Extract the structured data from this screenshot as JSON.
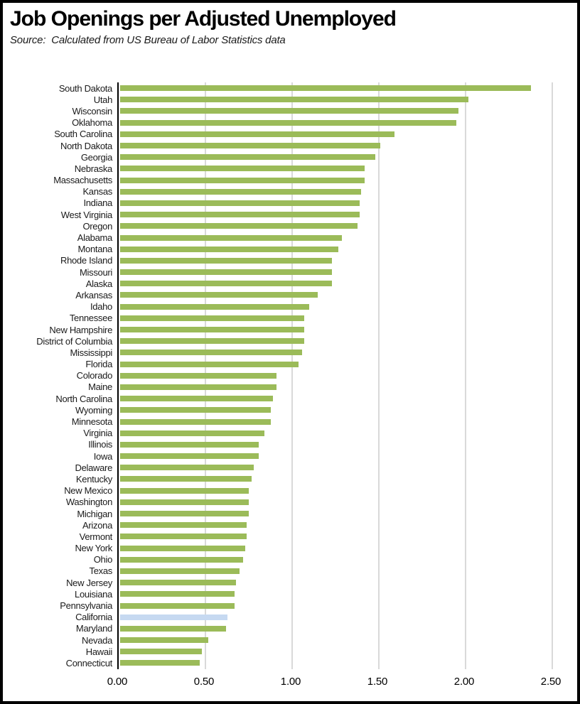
{
  "header": {
    "title": "Job Openings per Adjusted Unemployed",
    "subtitle": "Source:  Calculated from US Bureau of Labor Statistics data"
  },
  "chart_data": {
    "type": "bar",
    "orientation": "horizontal",
    "title": "Job Openings per Adjusted Unemployed",
    "subtitle": "Source:  Calculated from US Bureau of Labor Statistics data",
    "xlabel": "",
    "ylabel": "",
    "xlim": [
      0,
      2.5
    ],
    "grid": true,
    "legend": false,
    "x_ticks": [
      "0.00",
      "0.50",
      "1.00",
      "1.50",
      "2.00",
      "2.50"
    ],
    "x_tick_values": [
      0,
      0.5,
      1.0,
      1.5,
      2.0,
      2.5
    ],
    "bar_color": "#9bbb59",
    "highlight_category": "California",
    "highlight_color": "#c6d9f1",
    "gridline_color": "#d9d9d9",
    "axis_color": "#000000",
    "categories": [
      "South Dakota",
      "Utah",
      "Wisconsin",
      "Oklahoma",
      "South Carolina",
      "North Dakota",
      "Georgia",
      "Nebraska",
      "Massachusetts",
      "Kansas",
      "Indiana",
      "West Virginia",
      "Oregon",
      "Alabama",
      "Montana",
      "Rhode Island",
      "Missouri",
      "Alaska",
      "Arkansas",
      "Idaho",
      "Tennessee",
      "New Hampshire",
      "District of Columbia",
      "Mississippi",
      "Florida",
      "Colorado",
      "Maine",
      "North Carolina",
      "Wyoming",
      "Minnesota",
      "Virginia",
      "Illinois",
      "Iowa",
      "Delaware",
      "Kentucky",
      "New Mexico",
      "Washington",
      "Michigan",
      "Arizona",
      "Vermont",
      "New York",
      "Ohio",
      "Texas",
      "New Jersey",
      "Louisiana",
      "Pennsylvania",
      "California",
      "Maryland",
      "Nevada",
      "Hawaii",
      "Connecticut"
    ],
    "values": [
      2.37,
      2.01,
      1.95,
      1.94,
      1.58,
      1.5,
      1.47,
      1.41,
      1.41,
      1.39,
      1.38,
      1.38,
      1.37,
      1.28,
      1.26,
      1.22,
      1.22,
      1.22,
      1.14,
      1.09,
      1.06,
      1.06,
      1.06,
      1.05,
      1.03,
      0.9,
      0.9,
      0.88,
      0.87,
      0.87,
      0.83,
      0.8,
      0.8,
      0.77,
      0.76,
      0.74,
      0.74,
      0.74,
      0.73,
      0.73,
      0.72,
      0.71,
      0.69,
      0.67,
      0.66,
      0.66,
      0.62,
      0.61,
      0.51,
      0.47,
      0.46
    ]
  }
}
